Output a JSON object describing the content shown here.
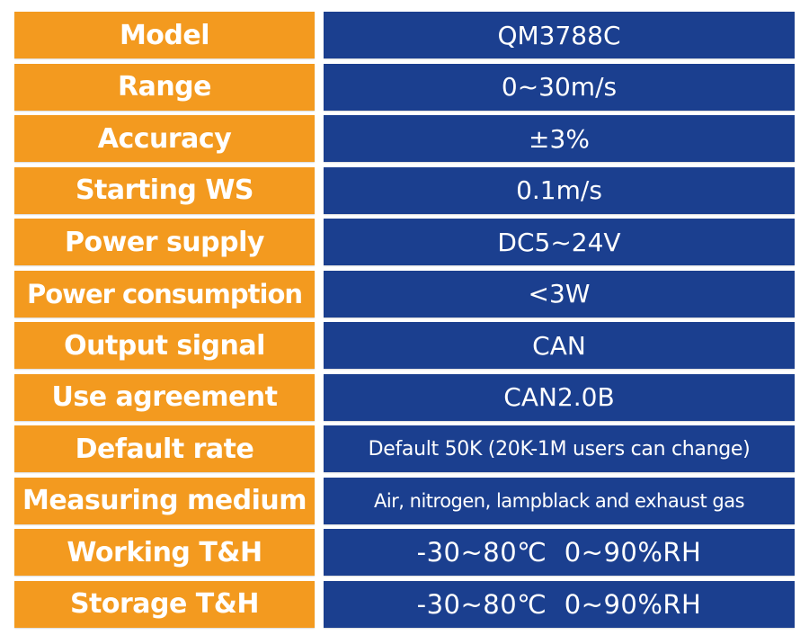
{
  "colors": {
    "label_background": "#f39a1f",
    "value_background": "#1b3f8f",
    "text": "#ffffff"
  },
  "rows": [
    {
      "label": "Model",
      "value": "QM3788C"
    },
    {
      "label": "Range",
      "value": "0~30m/s"
    },
    {
      "label": "Accuracy",
      "value": "±3%"
    },
    {
      "label": "Starting WS",
      "value": "0.1m/s"
    },
    {
      "label": "Power supply",
      "value": "DC5~24V"
    },
    {
      "label": "Power consumption",
      "value": "<3W"
    },
    {
      "label": "Output signal",
      "value": "CAN"
    },
    {
      "label": "Use agreement",
      "value": "CAN2.0B"
    },
    {
      "label": "Default rate",
      "value": "Default 50K (20K-1M users can change)"
    },
    {
      "label": "Measuring medium",
      "value": "Air, nitrogen, lampblack and exhaust gas"
    },
    {
      "label": "Working T&H",
      "value": "-30~80℃  0~90%RH"
    },
    {
      "label": "Storage T&H",
      "value": "-30~80℃  0~90%RH"
    }
  ]
}
